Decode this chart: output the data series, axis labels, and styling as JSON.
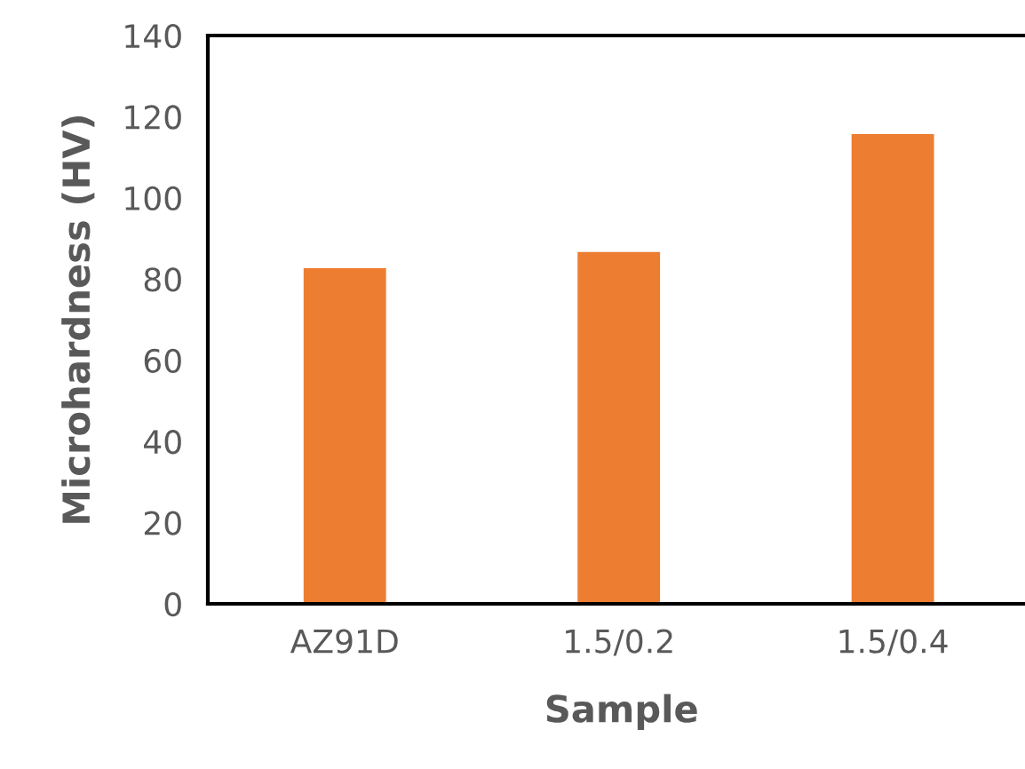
{
  "chart_data": {
    "type": "bar",
    "xlabel": "Sample",
    "ylabel": "Microhardness (HV)",
    "categories": [
      "AZ91D",
      "1.5/0.2",
      "1.5/0.4"
    ],
    "values": [
      83,
      87,
      116
    ],
    "color": "#ed7d31",
    "ylim": [
      0,
      140
    ],
    "yticks": [
      0,
      20,
      40,
      60,
      80,
      100,
      120,
      140
    ],
    "grid": false,
    "legend": false
  }
}
